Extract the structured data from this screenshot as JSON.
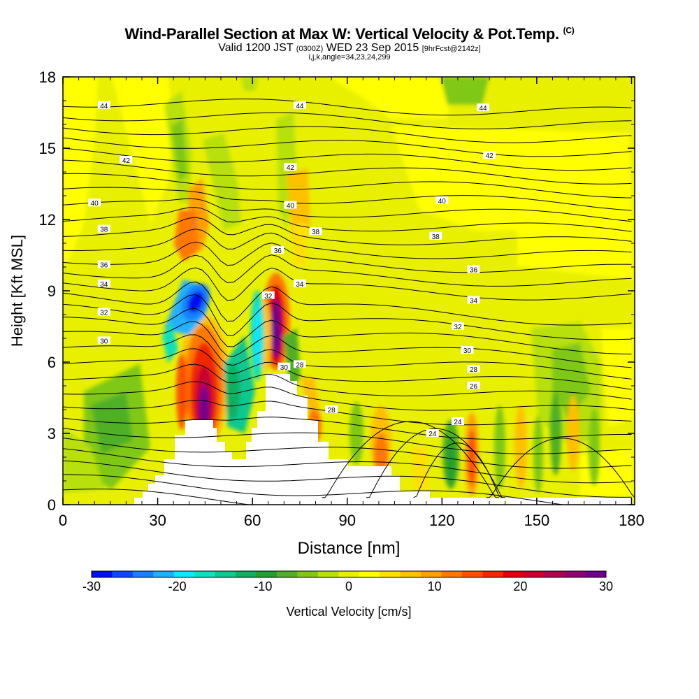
{
  "header": {
    "title": "Wind-Parallel Section at Max W: Vertical Velocity & Pot.Temp.",
    "title_mark": "(C)",
    "valid_prefix": "Valid 1200 JST",
    "valid_zulu": "(0300Z)",
    "valid_date": "WED 23 Sep 2015",
    "forecast_tag": "[9hrFcst@2142z]",
    "indices": "i,j,k,angle=34,23,24,299"
  },
  "chart_data": {
    "type": "heatmap",
    "xlabel": "Distance [nm]",
    "ylabel": "Height [Kft MSL]",
    "xlim": [
      0,
      181
    ],
    "ylim": [
      0,
      18
    ],
    "x_ticks": [
      0,
      30,
      60,
      90,
      120,
      150,
      180
    ],
    "y_ticks": [
      0,
      3,
      6,
      9,
      12,
      15,
      18
    ],
    "colorbar": {
      "label": "Vertical Velocity [cm/s]",
      "ticks": [
        -30,
        -20,
        -10,
        0,
        10,
        20,
        30
      ],
      "colors": [
        "#0010f0",
        "#1048ff",
        "#1880ff",
        "#20b0ff",
        "#10e8ff",
        "#10e0c0",
        "#10c890",
        "#10b060",
        "#20a030",
        "#50b028",
        "#80c818",
        "#b8e010",
        "#e8f000",
        "#ffff00",
        "#ffe000",
        "#ffc000",
        "#ffa000",
        "#ff7800",
        "#ff5000",
        "#f02800",
        "#e00010",
        "#c80030",
        "#b00050",
        "#900070",
        "#700090"
      ]
    },
    "theta_contours": [
      {
        "label": "24",
        "levels_kft": [
          [
            117,
            3.0
          ],
          [
            125,
            3.5
          ]
        ]
      },
      {
        "label": "26",
        "levels_kft": [
          [
            130,
            5.0
          ]
        ]
      },
      {
        "label": "28",
        "levels_kft": [
          [
            75,
            5.9
          ],
          [
            85,
            4.0
          ],
          [
            130,
            5.7
          ]
        ]
      },
      {
        "label": "30",
        "levels_kft": [
          [
            13,
            6.9
          ],
          [
            70,
            5.8
          ],
          [
            128,
            6.5
          ]
        ]
      },
      {
        "label": "32",
        "levels_kft": [
          [
            13,
            8.1
          ],
          [
            65,
            8.8
          ],
          [
            125,
            7.5
          ]
        ]
      },
      {
        "label": "34",
        "levels_kft": [
          [
            13,
            9.3
          ],
          [
            75,
            9.3
          ],
          [
            130,
            8.6
          ]
        ]
      },
      {
        "label": "36",
        "levels_kft": [
          [
            13,
            10.1
          ],
          [
            68,
            10.7
          ],
          [
            130,
            9.9
          ]
        ]
      },
      {
        "label": "38",
        "levels_kft": [
          [
            13,
            11.6
          ],
          [
            80,
            11.5
          ],
          [
            118,
            11.3
          ]
        ]
      },
      {
        "label": "40",
        "levels_kft": [
          [
            10,
            12.7
          ],
          [
            72,
            12.6
          ],
          [
            120,
            12.8
          ]
        ]
      },
      {
        "label": "42",
        "levels_kft": [
          [
            20,
            14.5
          ],
          [
            72,
            14.2
          ],
          [
            135,
            14.7
          ]
        ]
      },
      {
        "label": "44",
        "levels_kft": [
          [
            13,
            16.8
          ],
          [
            75,
            16.8
          ],
          [
            133,
            16.7
          ]
        ]
      }
    ],
    "terrain_kft": [
      [
        22,
        0.3
      ],
      [
        25,
        0.7
      ],
      [
        28,
        1.1
      ],
      [
        30,
        1.5
      ],
      [
        32,
        2.0
      ],
      [
        35,
        2.9
      ],
      [
        38,
        3.6
      ],
      [
        44,
        3.6
      ],
      [
        47,
        3.1
      ],
      [
        50,
        2.6
      ],
      [
        52,
        2.2
      ],
      [
        55,
        1.9
      ],
      [
        58,
        2.2
      ],
      [
        60,
        3.0
      ],
      [
        62,
        4.5
      ],
      [
        65,
        5.5
      ],
      [
        72,
        5.5
      ],
      [
        75,
        4.5
      ],
      [
        78,
        3.1
      ],
      [
        80,
        2.6
      ],
      [
        84,
        2.1
      ],
      [
        90,
        2.1
      ],
      [
        100,
        1.7
      ],
      [
        106,
        1.1
      ],
      [
        110,
        0.6
      ],
      [
        115,
        0.3
      ]
    ],
    "w_cells": [
      {
        "x": 45,
        "z": 4.5,
        "w": 30
      },
      {
        "x": 68,
        "z": 7.2,
        "w": 30
      },
      {
        "x": 41,
        "z": 8.6,
        "w": -30
      },
      {
        "x": 62,
        "z": 7.0,
        "w": -20
      },
      {
        "x": 37,
        "z": 11.0,
        "w": 12
      },
      {
        "x": 130,
        "z": 2.0,
        "w": 18
      },
      {
        "x": 124,
        "z": 2.0,
        "w": -10
      },
      {
        "x": 100,
        "z": 2.5,
        "w": 12
      }
    ]
  }
}
